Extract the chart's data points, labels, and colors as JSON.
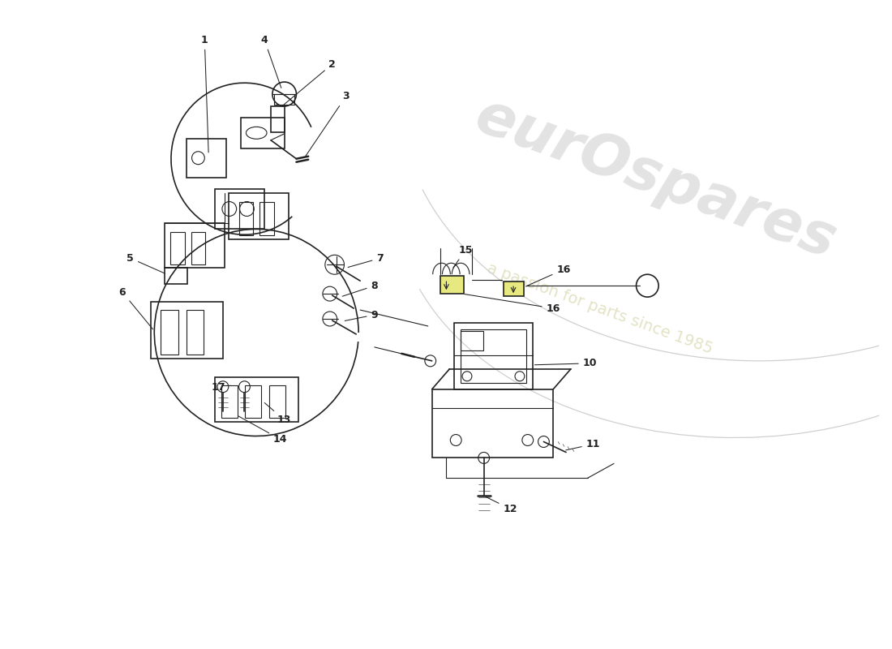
{
  "bg_color": "#ffffff",
  "line_color": "#222222",
  "watermark1": "eurOspares",
  "watermark2": "a passion for parts since 1985",
  "fig_width": 11.0,
  "fig_height": 8.0,
  "dpi": 100,
  "label_fontsize": 9,
  "leader_lw": 0.7
}
